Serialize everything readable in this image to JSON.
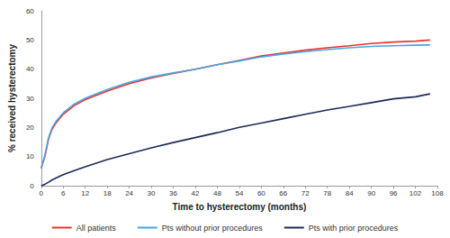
{
  "chart_data": {
    "type": "line",
    "x_label": "Time to hysterectomy (months)",
    "y_label": "% received hysterectomy",
    "x": [
      0,
      1,
      2,
      3,
      4,
      6,
      9,
      12,
      18,
      24,
      30,
      36,
      42,
      48,
      54,
      60,
      66,
      72,
      78,
      84,
      90,
      96,
      102,
      106
    ],
    "series": [
      {
        "name": "All patients",
        "color": "#e8342c",
        "values": [
          6,
          10,
          16,
          19.5,
          21.5,
          24.5,
          27.5,
          29.5,
          32.5,
          35,
          37,
          38.5,
          40,
          41.5,
          43,
          44.5,
          45.5,
          46.5,
          47.3,
          48,
          48.8,
          49.3,
          49.6,
          50
        ]
      },
      {
        "name": "Pts without prior procedures",
        "color": "#4ba3e3",
        "values": [
          6,
          10.5,
          16.5,
          20,
          22,
          25,
          28,
          30,
          33,
          35.5,
          37.3,
          38.7,
          40,
          41.5,
          42.8,
          44.2,
          45.2,
          46,
          46.7,
          47.3,
          47.8,
          48,
          48.2,
          48.3
        ]
      },
      {
        "name": "Pts with prior procedures",
        "color": "#1c2a57",
        "values": [
          0,
          0.5,
          1.2,
          2,
          2.6,
          3.8,
          5.2,
          6.5,
          9,
          11,
          13,
          14.8,
          16.5,
          18.2,
          20,
          21.5,
          23,
          24.5,
          26,
          27.2,
          28.5,
          29.8,
          30.5,
          31.5
        ]
      }
    ],
    "xlim": [
      0,
      108
    ],
    "xticks": [
      0,
      6,
      12,
      18,
      24,
      30,
      36,
      42,
      48,
      54,
      60,
      66,
      72,
      78,
      84,
      90,
      96,
      102,
      108
    ],
    "ylim": [
      0,
      60
    ],
    "yticks": [
      0,
      10,
      20,
      30,
      40,
      50,
      60
    ],
    "grid": false,
    "legend": "bottom"
  }
}
